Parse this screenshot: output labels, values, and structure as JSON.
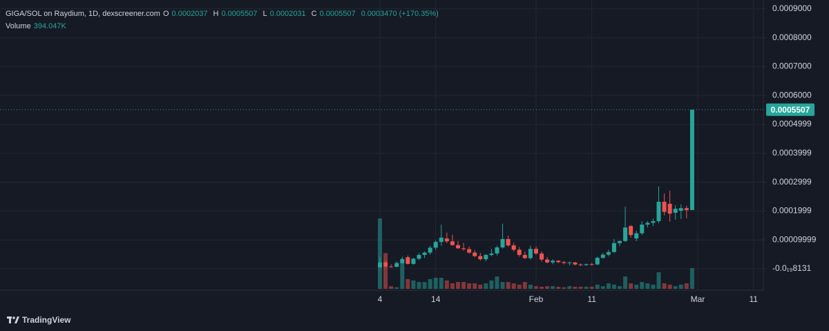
{
  "header": {
    "symbol": "GIGA/SOL on Raydium, 1D, dexscreener.com",
    "open_label": "O",
    "high_label": "H",
    "low_label": "L",
    "close_label": "C",
    "change": "0.0003470 (+170.35%)"
  },
  "footer": {
    "brand": "TradingView"
  },
  "chart_data": {
    "type": "candlestick",
    "categories": [
      "4",
      null,
      null,
      null,
      null,
      null,
      null,
      null,
      null,
      null,
      "14",
      null,
      null,
      null,
      null,
      null,
      null,
      null,
      null,
      null,
      null,
      null,
      null,
      null,
      null,
      null,
      null,
      null,
      "Feb",
      null,
      null,
      null,
      null,
      null,
      null,
      null,
      null,
      null,
      "11",
      null,
      null,
      null,
      null,
      null,
      null,
      null,
      null,
      null,
      null,
      null,
      null,
      null,
      null,
      null,
      null,
      null,
      null,
      "Mar",
      null,
      null,
      null,
      null,
      null,
      null,
      null,
      null,
      null,
      "11"
    ],
    "open": [
      5e-06,
      2.2e-05,
      8e-06,
      7e-06,
      2e-05,
      4e-05,
      1.7e-05,
      3.5e-05,
      4.8e-05,
      5.6e-05,
      7.3e-05,
      9.3e-05,
      0.000105,
      9.5e-05,
      8.2e-05,
      7.1e-05,
      6.8e-05,
      5.6e-05,
      4.4e-05,
      3.3e-05,
      4.8e-05,
      5.3e-05,
      7.4e-05,
      0.000103,
      8.1e-05,
      6.6e-05,
      4.8e-05,
      3.7e-05,
      6.9e-05,
      5.3e-05,
      3.2e-05,
      2.2e-05,
      2.8e-05,
      2.3e-05,
      2e-05,
      2.2e-05,
      1.5e-05,
      1.3e-05,
      1.6e-05,
      1.5e-05,
      3.8e-05,
      4.9e-05,
      5.8e-05,
      8.9e-05,
      9.6e-05,
      0.000148,
      0.000105,
      0.000123,
      0.000153,
      0.000159,
      0.000165,
      0.000232,
      0.000225,
      0.000194,
      0.000201,
      0.00021,
      0.0002037,
      null,
      null,
      null,
      null,
      null,
      null,
      null,
      null,
      null,
      null,
      null
    ],
    "high": [
      4e-05,
      2.8e-05,
      1.5e-05,
      2.5e-05,
      4.2e-05,
      4.6e-05,
      3.8e-05,
      5.4e-05,
      6e-05,
      8e-05,
      9.9e-05,
      0.000153,
      0.000125,
      0.000118,
      9.6e-05,
      9e-05,
      7.7e-05,
      6.5e-05,
      5.5e-05,
      5.1e-05,
      6.9e-05,
      8e-05,
      0.000156,
      0.000115,
      9e-05,
      7.5e-05,
      6e-05,
      8e-05,
      7.7e-05,
      6e-05,
      4.1e-05,
      3.3e-05,
      3e-05,
      2.7e-05,
      2.5e-05,
      2.4e-05,
      1.9e-05,
      1.8e-05,
      2e-05,
      4.2e-05,
      5.5e-05,
      6.6e-05,
      0.000103,
      9.8e-05,
      0.000215,
      0.000152,
      0.000132,
      0.000165,
      0.000165,
      0.000174,
      0.000285,
      0.000261,
      0.00027,
      0.00022,
      0.000223,
      0.000218,
      0.0005507,
      null,
      null,
      null,
      null,
      null,
      null,
      null,
      null,
      null,
      null,
      null
    ],
    "low": [
      3e-06,
      5e-06,
      4e-06,
      5e-06,
      1.6e-05,
      1.5e-05,
      1.4e-05,
      3e-05,
      3.8e-05,
      4.9e-05,
      6.5e-05,
      8e-05,
      8.9e-05,
      8e-05,
      6.9e-05,
      6.3e-05,
      5.2e-05,
      4e-05,
      2.9e-05,
      2.6e-05,
      4.3e-05,
      4.6e-05,
      7e-05,
      7.6e-05,
      6e-05,
      4.2e-05,
      3.4e-05,
      3.2e-05,
      4.8e-05,
      2.5e-05,
      1.9e-05,
      1.6e-05,
      1.9e-05,
      1.5e-05,
      1.2e-05,
      1.2e-05,
      9e-06,
      1e-05,
      1.1e-05,
      1.3e-05,
      3.5e-05,
      4.3e-05,
      5.6e-05,
      7.9e-05,
      9.3e-05,
      0.000108,
      9.6e-05,
      0.000117,
      0.000143,
      0.000148,
      0.000158,
      0.000185,
      0.000163,
      0.00017,
      0.000172,
      0.000175,
      0.0002031,
      null,
      null,
      null,
      null,
      null,
      null,
      null,
      null,
      null,
      null,
      null
    ],
    "close": [
      2.2e-05,
      8e-06,
      7e-06,
      2e-05,
      3.4e-05,
      1.7e-05,
      3.5e-05,
      4.8e-05,
      5.6e-05,
      7.3e-05,
      9.3e-05,
      0.000108,
      9.5e-05,
      8.2e-05,
      7.1e-05,
      6.8e-05,
      5.6e-05,
      4.4e-05,
      3.3e-05,
      4.8e-05,
      5.3e-05,
      7.4e-05,
      0.000103,
      8.1e-05,
      6.6e-05,
      4.8e-05,
      3.7e-05,
      6.9e-05,
      5.3e-05,
      3.2e-05,
      2.2e-05,
      2.8e-05,
      2.3e-05,
      2e-05,
      2.2e-05,
      1.5e-05,
      1.3e-05,
      1.6e-05,
      1.4e-05,
      3.8e-05,
      4.9e-05,
      5.8e-05,
      8.9e-05,
      9.6e-05,
      0.000143,
      0.000117,
      0.000123,
      0.000153,
      0.000159,
      0.000165,
      0.000232,
      0.000197,
      0.000191,
      0.000208,
      0.00021,
      0.000203,
      0.0005507,
      null,
      null,
      null,
      null,
      null,
      null,
      null,
      null,
      null,
      null,
      null
    ],
    "volume": {
      "name": "Volume",
      "values": [
        1340000,
        680000,
        50000,
        30000,
        525000,
        185000,
        160000,
        130000,
        130000,
        185000,
        210000,
        210000,
        160000,
        105000,
        130000,
        130000,
        105000,
        105000,
        80000,
        105000,
        160000,
        235000,
        130000,
        130000,
        105000,
        80000,
        130000,
        80000,
        50000,
        40000,
        50000,
        50000,
        40000,
        30000,
        50000,
        40000,
        40000,
        40000,
        40000,
        80000,
        50000,
        105000,
        80000,
        50000,
        235000,
        105000,
        80000,
        130000,
        105000,
        80000,
        315000,
        105000,
        80000,
        50000,
        80000,
        105000,
        394047,
        null,
        null,
        null,
        null,
        null,
        null,
        null,
        null,
        null,
        null,
        null
      ],
      "value_labels": [
        null,
        null,
        null,
        null,
        null,
        null,
        null,
        null,
        null,
        null,
        null,
        null,
        null,
        null,
        null,
        null,
        null,
        null,
        null,
        null,
        null,
        null,
        null,
        null,
        null,
        null,
        null,
        null,
        null,
        null,
        null,
        null,
        null,
        null,
        null,
        null,
        null,
        null,
        null,
        null,
        null,
        null,
        null,
        null,
        null,
        null,
        null,
        null,
        null,
        null,
        null,
        null,
        null,
        null,
        null,
        null,
        "394.047K",
        null,
        null,
        null,
        null,
        null,
        null,
        null,
        null,
        null,
        null,
        null
      ]
    },
    "up_color": "#26a69a",
    "down_color": "#ef5350",
    "ylim": [
      -7.42e-05,
      0.0009306
    ],
    "yticks": [
      {
        "value": -8.131e-21,
        "label": "-0.0₁₉8131"
      },
      9.999e-05,
      0.0001999,
      0.0002999,
      0.0003999,
      0.0004999,
      {
        "value": 0.0006,
        "label": "0.0006000"
      },
      {
        "value": 0.0007,
        "label": "0.0007000"
      },
      {
        "value": 0.0008,
        "label": "0.0008000"
      },
      {
        "value": 0.0009,
        "label": "0.0009000"
      }
    ],
    "grid": true
  }
}
